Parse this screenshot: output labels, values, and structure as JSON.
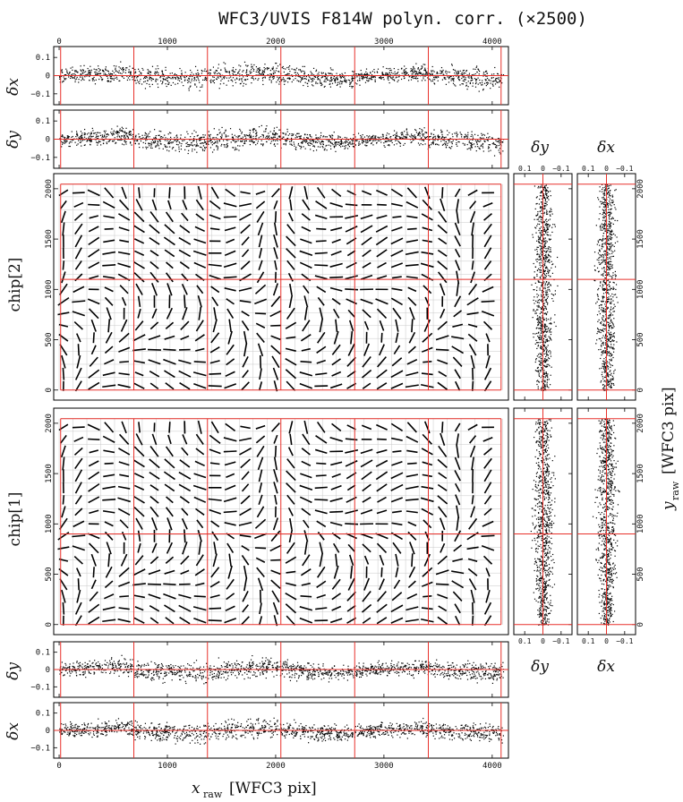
{
  "chart_data": {
    "type": "scatter",
    "title": "WFC3/UVIS F814W polyn. corr. (×2500)",
    "xlabel": "x_raw [WFC3 pix]",
    "xlabel_main": "x",
    "xlabel_sub": "raw",
    "xlabel_unit": "[WFC3 pix]",
    "ylabel": "y_raw [WFC3 pix]",
    "ylabel_main": "y",
    "ylabel_sub": "raw",
    "ylabel_unit": "[WFC3 pix]",
    "xlim": [
      -50,
      4150
    ],
    "ylim": [
      -100,
      2150
    ],
    "residual_lim": [
      -0.15,
      0.15
    ],
    "x_ticks": [
      0,
      1000,
      2000,
      3000,
      4000
    ],
    "x_tick_labels": [
      "0",
      "1000",
      "2000",
      "3000",
      "4000"
    ],
    "y_ticks": [
      0,
      500,
      1000,
      1500,
      2000
    ],
    "y_tick_labels": [
      "0",
      "500",
      "1000",
      "1500",
      "2000"
    ],
    "residual_ticks": [
      0.1,
      0,
      -0.1
    ],
    "residual_tick_labels": [
      "0.1",
      "0",
      "−0.1"
    ],
    "side_tick_labels": [
      "0.1",
      "0",
      "−0.1"
    ],
    "grid": true,
    "red_boundaries_x": [
      14,
      690,
      1370,
      2048,
      2730,
      3410,
      4082
    ],
    "red_boundaries_y_chip2": [
      0,
      1100,
      2045
    ],
    "red_boundaries_y_chip1": [
      0,
      900,
      2045
    ],
    "panels": [
      {
        "name": "top-dx",
        "label": "δx",
        "axis": "x"
      },
      {
        "name": "top-dy",
        "label": "δy",
        "axis": "x"
      },
      {
        "name": "chip2-vectors",
        "label": "chip[2]"
      },
      {
        "name": "chip1-vectors",
        "label": "chip[1]"
      },
      {
        "name": "bottom-dy",
        "label": "δy",
        "axis": "x"
      },
      {
        "name": "bottom-dx",
        "label": "δx",
        "axis": "x"
      },
      {
        "name": "side-dy",
        "label": "δy",
        "axis": "y"
      },
      {
        "name": "side-dx",
        "label": "δx",
        "axis": "y"
      }
    ]
  },
  "colors": {
    "boundary": "#e8312b",
    "points": "#000000",
    "grid": "#c8c8c8"
  }
}
